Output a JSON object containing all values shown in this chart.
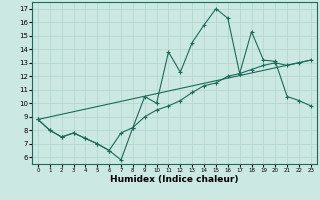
{
  "xlabel": "Humidex (Indice chaleur)",
  "background_color": "#cce8e2",
  "line_color": "#1a6b5a",
  "xlim": [
    -0.5,
    23.5
  ],
  "ylim": [
    5.5,
    17.5
  ],
  "xticks": [
    0,
    1,
    2,
    3,
    4,
    5,
    6,
    7,
    8,
    9,
    10,
    11,
    12,
    13,
    14,
    15,
    16,
    17,
    18,
    19,
    20,
    21,
    22,
    23
  ],
  "yticks": [
    6,
    7,
    8,
    9,
    10,
    11,
    12,
    13,
    14,
    15,
    16,
    17
  ],
  "line1_x": [
    0,
    1,
    2,
    3,
    4,
    5,
    6,
    7,
    8,
    9,
    10,
    11,
    12,
    13,
    14,
    15,
    16,
    17,
    18,
    19,
    20,
    21,
    22,
    23
  ],
  "line1_y": [
    8.8,
    8.0,
    7.5,
    7.8,
    7.4,
    7.0,
    6.5,
    5.8,
    8.2,
    10.5,
    10.0,
    13.8,
    12.3,
    14.5,
    15.8,
    17.0,
    16.3,
    12.2,
    15.3,
    13.2,
    13.1,
    10.5,
    10.2,
    9.8
  ],
  "line2_x": [
    0,
    1,
    2,
    3,
    4,
    5,
    6,
    7,
    8,
    9,
    10,
    11,
    12,
    13,
    14,
    15,
    16,
    17,
    18,
    19,
    20,
    21,
    22,
    23
  ],
  "line2_y": [
    8.8,
    8.0,
    7.5,
    7.8,
    7.4,
    7.0,
    6.5,
    7.8,
    8.2,
    9.0,
    9.5,
    9.8,
    10.2,
    10.8,
    11.3,
    11.5,
    12.0,
    12.2,
    12.5,
    12.8,
    13.0,
    12.8,
    13.0,
    13.2
  ],
  "line3_x": [
    0,
    23
  ],
  "line3_y": [
    8.8,
    13.2
  ],
  "grid_color": "#b0d4cc"
}
